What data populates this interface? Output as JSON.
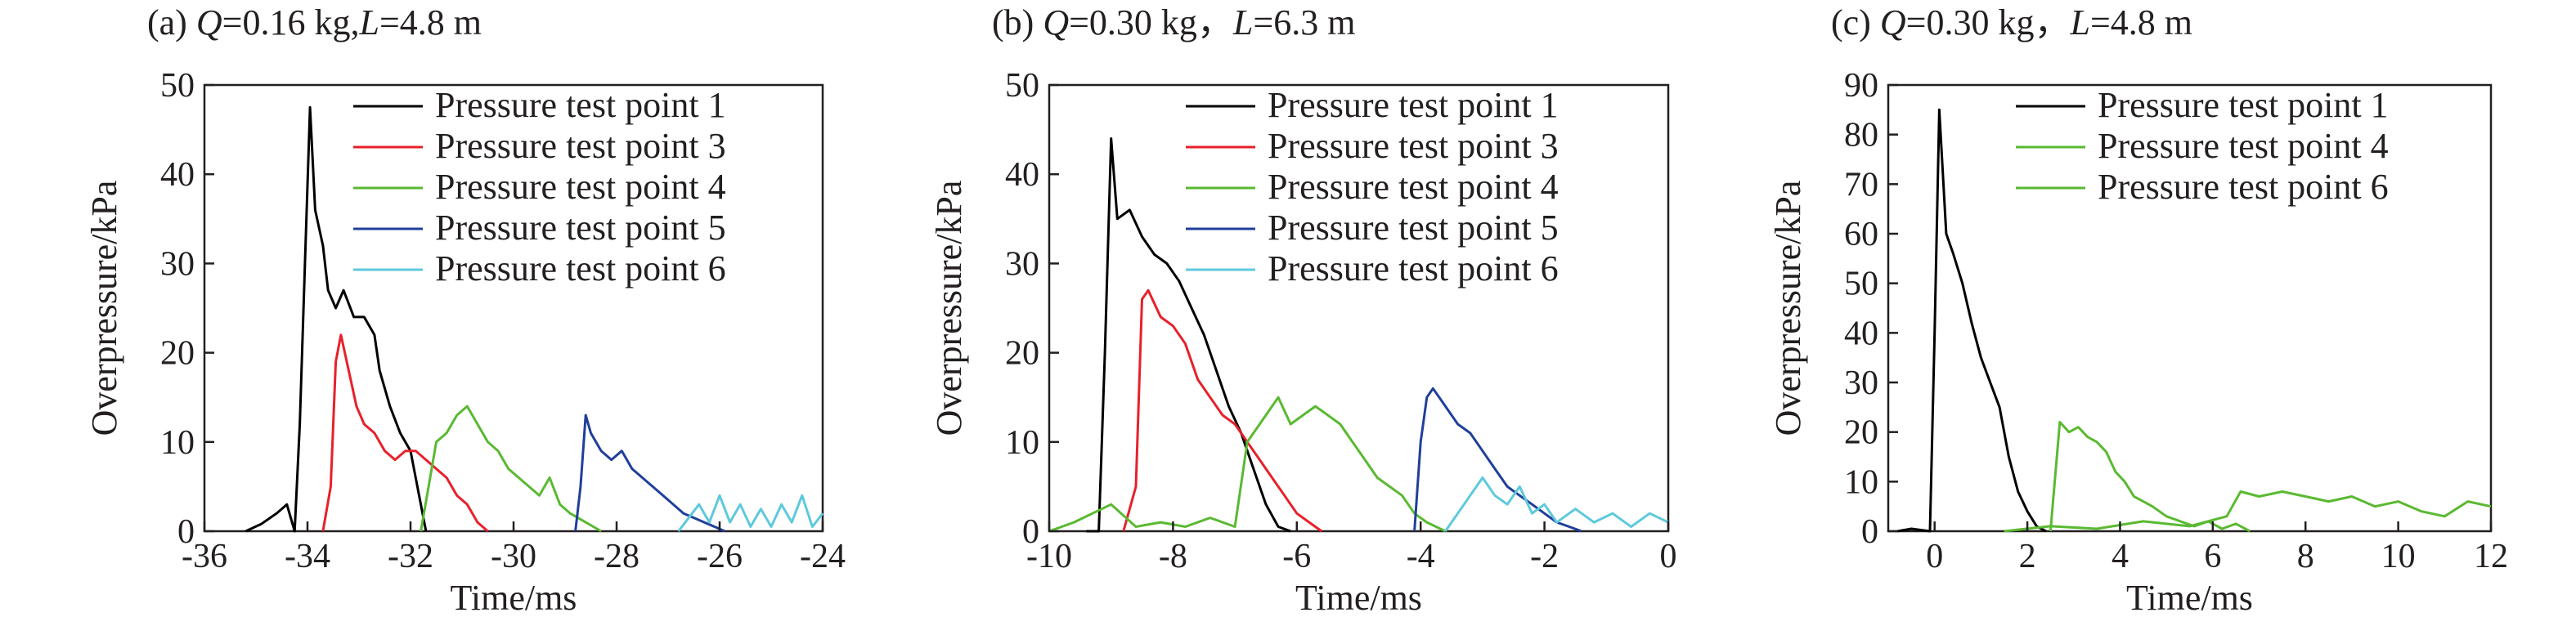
{
  "colors": {
    "axis": "#231f20",
    "point1": "#000000",
    "point3": "#e8202a",
    "point4": "#5ab932",
    "point5": "#1f3f9a",
    "point6": "#5ec9dc"
  },
  "chart_data": [
    {
      "type": "line",
      "panel_label": "(a)",
      "panel_condition": {
        "q_var": "Q",
        "q_value": "=0.16 kg,",
        "l_var": "L",
        "l_value": "=4.8 m"
      },
      "xlabel": "Time/ms",
      "ylabel": "Overpressure/kPa",
      "xlim": [
        -36,
        -24
      ],
      "ylim": [
        0,
        50
      ],
      "xticks": [
        -36,
        -34,
        -32,
        -30,
        -28,
        -26,
        -24
      ],
      "yticks": [
        0,
        10,
        20,
        30,
        40,
        50
      ],
      "legend_position": "top-right",
      "series": [
        {
          "name": "Pressure test point 1",
          "color_key": "point1",
          "points": [
            [
              -35.2,
              0
            ],
            [
              -34.9,
              0.8
            ],
            [
              -34.6,
              2
            ],
            [
              -34.4,
              3
            ],
            [
              -34.25,
              0
            ],
            [
              -34.15,
              12
            ],
            [
              -34.05,
              30
            ],
            [
              -33.95,
              47.5
            ],
            [
              -33.85,
              36
            ],
            [
              -33.7,
              32
            ],
            [
              -33.6,
              27
            ],
            [
              -33.45,
              25
            ],
            [
              -33.3,
              27
            ],
            [
              -33.1,
              24
            ],
            [
              -32.9,
              24
            ],
            [
              -32.7,
              22
            ],
            [
              -32.6,
              18
            ],
            [
              -32.4,
              14
            ],
            [
              -32.2,
              11
            ],
            [
              -32.0,
              9
            ],
            [
              -31.9,
              6
            ],
            [
              -31.8,
              3
            ],
            [
              -31.7,
              0
            ]
          ]
        },
        {
          "name": "Pressure test point 3",
          "color_key": "point3",
          "points": [
            [
              -33.7,
              0
            ],
            [
              -33.55,
              5
            ],
            [
              -33.45,
              19
            ],
            [
              -33.35,
              22
            ],
            [
              -33.2,
              18
            ],
            [
              -33.05,
              14
            ],
            [
              -32.9,
              12
            ],
            [
              -32.7,
              11
            ],
            [
              -32.5,
              9
            ],
            [
              -32.3,
              8
            ],
            [
              -32.1,
              9
            ],
            [
              -31.9,
              9
            ],
            [
              -31.7,
              8
            ],
            [
              -31.5,
              7
            ],
            [
              -31.3,
              6
            ],
            [
              -31.1,
              4
            ],
            [
              -30.9,
              3
            ],
            [
              -30.7,
              1
            ],
            [
              -30.5,
              0
            ]
          ]
        },
        {
          "name": "Pressure test point 4",
          "color_key": "point4",
          "points": [
            [
              -31.8,
              0
            ],
            [
              -31.65,
              5
            ],
            [
              -31.5,
              10
            ],
            [
              -31.3,
              11
            ],
            [
              -31.1,
              13
            ],
            [
              -30.9,
              14
            ],
            [
              -30.7,
              12
            ],
            [
              -30.5,
              10
            ],
            [
              -30.3,
              9
            ],
            [
              -30.1,
              7
            ],
            [
              -29.9,
              6
            ],
            [
              -29.7,
              5
            ],
            [
              -29.5,
              4
            ],
            [
              -29.3,
              6
            ],
            [
              -29.1,
              3
            ],
            [
              -28.9,
              2
            ],
            [
              -28.6,
              1
            ],
            [
              -28.3,
              0
            ]
          ]
        },
        {
          "name": "Pressure test point 5",
          "color_key": "point5",
          "points": [
            [
              -28.8,
              0
            ],
            [
              -28.7,
              5
            ],
            [
              -28.6,
              13
            ],
            [
              -28.5,
              11
            ],
            [
              -28.3,
              9
            ],
            [
              -28.1,
              8
            ],
            [
              -27.9,
              9
            ],
            [
              -27.7,
              7
            ],
            [
              -27.5,
              6
            ],
            [
              -27.3,
              5
            ],
            [
              -27.1,
              4
            ],
            [
              -26.9,
              3
            ],
            [
              -26.7,
              2
            ],
            [
              -26.5,
              1.5
            ],
            [
              -26.3,
              1
            ],
            [
              -26.1,
              0.5
            ],
            [
              -25.9,
              0
            ]
          ]
        },
        {
          "name": "Pressure test point 6",
          "color_key": "point6",
          "points": [
            [
              -26.8,
              0
            ],
            [
              -26.6,
              1.5
            ],
            [
              -26.4,
              3
            ],
            [
              -26.2,
              1
            ],
            [
              -26.0,
              4
            ],
            [
              -25.8,
              1
            ],
            [
              -25.6,
              3
            ],
            [
              -25.4,
              0.5
            ],
            [
              -25.2,
              2.5
            ],
            [
              -25.0,
              0.5
            ],
            [
              -24.8,
              3
            ],
            [
              -24.6,
              1
            ],
            [
              -24.4,
              4
            ],
            [
              -24.2,
              0.5
            ],
            [
              -24.0,
              2
            ]
          ]
        }
      ]
    },
    {
      "type": "line",
      "panel_label": "(b)",
      "panel_condition": {
        "q_var": "Q",
        "q_value": "=0.30 kg，",
        "l_var": "L",
        "l_value": "=6.3 m"
      },
      "xlabel": "Time/ms",
      "ylabel": "Overpressure/kPa",
      "xlim": [
        -10,
        0
      ],
      "ylim": [
        0,
        50
      ],
      "xticks": [
        -10,
        -8,
        -6,
        -4,
        -2,
        0
      ],
      "yticks": [
        0,
        10,
        20,
        30,
        40,
        50
      ],
      "legend_position": "top-right",
      "series": [
        {
          "name": "Pressure test point 1",
          "color_key": "point1",
          "points": [
            [
              -9.4,
              0
            ],
            [
              -9.2,
              0
            ],
            [
              -9.1,
              20
            ],
            [
              -9.0,
              44
            ],
            [
              -8.9,
              35
            ],
            [
              -8.7,
              36
            ],
            [
              -8.5,
              33
            ],
            [
              -8.3,
              31
            ],
            [
              -8.1,
              30
            ],
            [
              -7.9,
              28
            ],
            [
              -7.7,
              25
            ],
            [
              -7.5,
              22
            ],
            [
              -7.3,
              18
            ],
            [
              -7.1,
              14
            ],
            [
              -6.9,
              11
            ],
            [
              -6.7,
              7
            ],
            [
              -6.5,
              3
            ],
            [
              -6.3,
              0.5
            ],
            [
              -6.1,
              0
            ]
          ]
        },
        {
          "name": "Pressure test point 3",
          "color_key": "point3",
          "points": [
            [
              -8.8,
              0
            ],
            [
              -8.6,
              5
            ],
            [
              -8.5,
              26
            ],
            [
              -8.4,
              27
            ],
            [
              -8.2,
              24
            ],
            [
              -8.0,
              23
            ],
            [
              -7.8,
              21
            ],
            [
              -7.6,
              17
            ],
            [
              -7.4,
              15
            ],
            [
              -7.2,
              13
            ],
            [
              -7.0,
              12
            ],
            [
              -6.8,
              10
            ],
            [
              -6.6,
              8
            ],
            [
              -6.4,
              6
            ],
            [
              -6.2,
              4
            ],
            [
              -6.0,
              2
            ],
            [
              -5.8,
              1
            ],
            [
              -5.6,
              0
            ]
          ]
        },
        {
          "name": "Pressure test point 4",
          "color_key": "point4",
          "points": [
            [
              -10,
              0
            ],
            [
              -9.6,
              1
            ],
            [
              -9.3,
              2
            ],
            [
              -9.0,
              3
            ],
            [
              -8.6,
              0.5
            ],
            [
              -8.2,
              1
            ],
            [
              -7.8,
              0.5
            ],
            [
              -7.4,
              1.5
            ],
            [
              -7.0,
              0.5
            ],
            [
              -6.8,
              10
            ],
            [
              -6.5,
              13
            ],
            [
              -6.3,
              15
            ],
            [
              -6.1,
              12
            ],
            [
              -5.9,
              13
            ],
            [
              -5.7,
              14
            ],
            [
              -5.5,
              13
            ],
            [
              -5.3,
              12
            ],
            [
              -5.1,
              10
            ],
            [
              -4.9,
              8
            ],
            [
              -4.7,
              6
            ],
            [
              -4.5,
              5
            ],
            [
              -4.3,
              4
            ],
            [
              -4.1,
              2
            ],
            [
              -3.9,
              1
            ],
            [
              -3.6,
              0
            ]
          ]
        },
        {
          "name": "Pressure test point 5",
          "color_key": "point5",
          "points": [
            [
              -4.1,
              0
            ],
            [
              -4.0,
              10
            ],
            [
              -3.9,
              15
            ],
            [
              -3.8,
              16
            ],
            [
              -3.6,
              14
            ],
            [
              -3.4,
              12
            ],
            [
              -3.2,
              11
            ],
            [
              -3.0,
              9
            ],
            [
              -2.8,
              7
            ],
            [
              -2.6,
              5
            ],
            [
              -2.4,
              4
            ],
            [
              -2.2,
              3
            ],
            [
              -2.0,
              2
            ],
            [
              -1.8,
              1
            ],
            [
              -1.6,
              0.5
            ],
            [
              -1.4,
              0
            ]
          ]
        },
        {
          "name": "Pressure test point 6",
          "color_key": "point6",
          "points": [
            [
              -3.6,
              0
            ],
            [
              -3.4,
              2
            ],
            [
              -3.2,
              4
            ],
            [
              -3.0,
              6
            ],
            [
              -2.8,
              4
            ],
            [
              -2.6,
              3
            ],
            [
              -2.4,
              5
            ],
            [
              -2.2,
              2
            ],
            [
              -2.0,
              3
            ],
            [
              -1.8,
              1
            ],
            [
              -1.5,
              2.5
            ],
            [
              -1.2,
              1
            ],
            [
              -0.9,
              2
            ],
            [
              -0.6,
              0.5
            ],
            [
              -0.3,
              2
            ],
            [
              0,
              1
            ]
          ]
        }
      ]
    },
    {
      "type": "line",
      "panel_label": "(c)",
      "panel_condition": {
        "q_var": "Q",
        "q_value": "=0.30 kg，",
        "l_var": "L",
        "l_value": "=4.8 m"
      },
      "xlabel": "Time/ms",
      "ylabel": "Overpressure/kPa",
      "xlim": [
        -1,
        12
      ],
      "ylim": [
        0,
        90
      ],
      "xticks": [
        0,
        2,
        4,
        6,
        8,
        10,
        12
      ],
      "yticks": [
        0,
        10,
        20,
        30,
        40,
        50,
        60,
        70,
        80,
        90
      ],
      "legend_position": "top-right",
      "series": [
        {
          "name": "Pressure test point 1",
          "color_key": "point1",
          "points": [
            [
              -0.8,
              0
            ],
            [
              -0.5,
              0.5
            ],
            [
              -0.1,
              0
            ],
            [
              0.0,
              40
            ],
            [
              0.1,
              85
            ],
            [
              0.25,
              60
            ],
            [
              0.4,
              56
            ],
            [
              0.6,
              50
            ],
            [
              0.8,
              42
            ],
            [
              1.0,
              35
            ],
            [
              1.2,
              30
            ],
            [
              1.4,
              25
            ],
            [
              1.6,
              15
            ],
            [
              1.8,
              8
            ],
            [
              2.0,
              4
            ],
            [
              2.2,
              1
            ],
            [
              2.4,
              0
            ]
          ]
        },
        {
          "name": "Pressure test point 4",
          "color_key": "point4",
          "points": [
            [
              2.5,
              0
            ],
            [
              2.7,
              22
            ],
            [
              2.9,
              20
            ],
            [
              3.1,
              21
            ],
            [
              3.3,
              19
            ],
            [
              3.5,
              18
            ],
            [
              3.7,
              16
            ],
            [
              3.9,
              12
            ],
            [
              4.1,
              10
            ],
            [
              4.3,
              7
            ],
            [
              4.5,
              6
            ],
            [
              4.7,
              5
            ],
            [
              5.0,
              3
            ],
            [
              5.3,
              2
            ],
            [
              5.6,
              1
            ],
            [
              5.9,
              2
            ],
            [
              6.2,
              0.5
            ],
            [
              6.5,
              1.5
            ],
            [
              6.8,
              0
            ]
          ]
        },
        {
          "name": "Pressure test point 6",
          "color_key": "point6_green",
          "points": [
            [
              1.5,
              0
            ],
            [
              2.5,
              1
            ],
            [
              3.5,
              0.5
            ],
            [
              4.5,
              2
            ],
            [
              5.5,
              1
            ],
            [
              6.3,
              3
            ],
            [
              6.6,
              8
            ],
            [
              7.0,
              7
            ],
            [
              7.5,
              8
            ],
            [
              8.0,
              7
            ],
            [
              8.5,
              6
            ],
            [
              9.0,
              7
            ],
            [
              9.5,
              5
            ],
            [
              10.0,
              6
            ],
            [
              10.5,
              4
            ],
            [
              11.0,
              3
            ],
            [
              11.5,
              6
            ],
            [
              12.0,
              5
            ]
          ]
        }
      ]
    }
  ]
}
